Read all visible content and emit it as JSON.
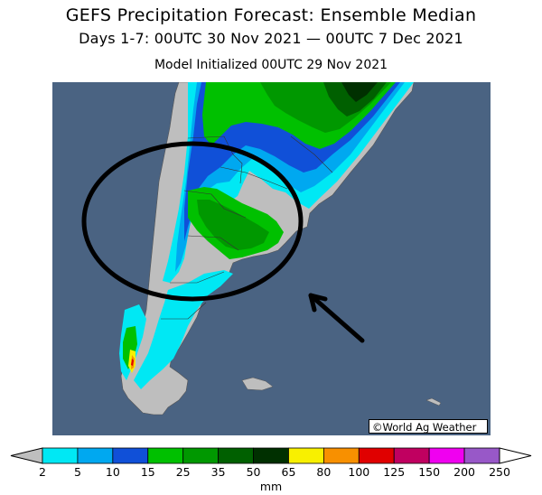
{
  "header": {
    "title": "GEFS Precipitation Forecast: Ensemble Median",
    "period": "Days 1-7: 00UTC 30 Nov 2021 — 00UTC 7 Dec 2021",
    "init": "Model Initialized 00UTC 29 Nov 2021"
  },
  "credit": "©World Ag Weather",
  "colorbar": {
    "unit": "mm",
    "ticks": [
      "2",
      "5",
      "10",
      "15",
      "25",
      "35",
      "50",
      "65",
      "80",
      "100",
      "125",
      "150",
      "200",
      "250"
    ],
    "colors": [
      "#00e8f4",
      "#00a8f0",
      "#1050d8",
      "#00c000",
      "#009800",
      "#006000",
      "#003000",
      "#f8f000",
      "#f89000",
      "#e00000",
      "#c00060",
      "#f000f0",
      "#9858c8"
    ]
  },
  "map": {
    "ocean_color": "#4a6382",
    "land_color": "#bebebe",
    "annotation": {
      "circle_color": "#000000",
      "arrow_color": "#000000"
    }
  }
}
